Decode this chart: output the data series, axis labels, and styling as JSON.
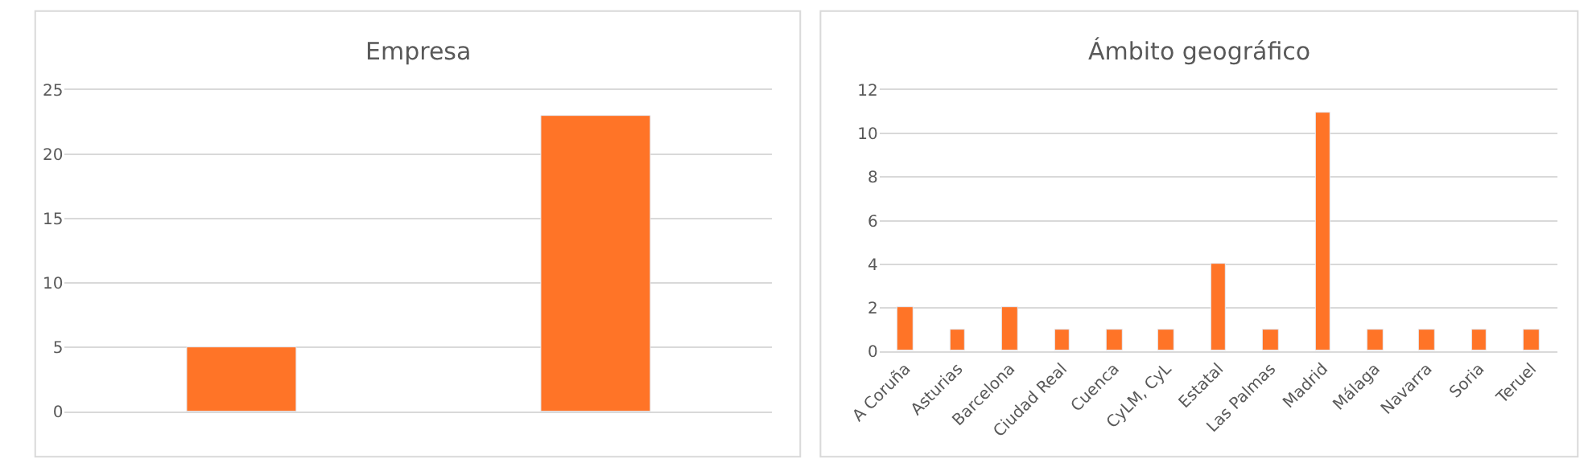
{
  "chart_data": [
    {
      "type": "bar",
      "title": "Empresa",
      "categories": [
        null,
        null
      ],
      "values": [
        5,
        23
      ],
      "color": "#ff7427",
      "ylim": [
        0,
        25
      ],
      "yticks": [
        0,
        5,
        10,
        15,
        20,
        25
      ],
      "grid": "y"
    },
    {
      "type": "bar",
      "title": "Ámbito geográfico",
      "categories": [
        "A Coruña",
        "Asturias",
        "Barcelona",
        "Ciudad Real",
        "Cuenca",
        "CyLM, CyL",
        "Estatal",
        "Las Palmas",
        "Madrid",
        "Málaga",
        "Navarra",
        "Soria",
        "Teruel"
      ],
      "values": [
        2,
        1,
        2,
        1,
        1,
        1,
        4,
        1,
        11,
        1,
        1,
        1,
        1
      ],
      "color": "#ff7427",
      "ylim": [
        0,
        12
      ],
      "yticks": [
        0,
        2,
        4,
        6,
        8,
        10,
        12
      ],
      "grid": "y"
    }
  ]
}
